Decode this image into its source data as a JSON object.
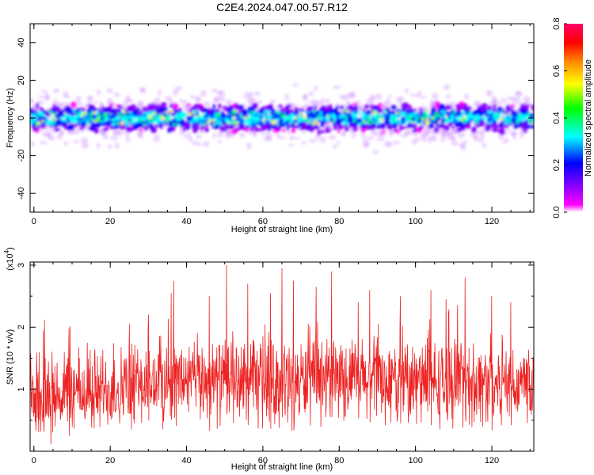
{
  "title": "C2E4.2024.047.00.57.R12",
  "chart_data": [
    {
      "type": "heatmap",
      "xlabel": "Height of straight line (km)",
      "ylabel": "Frequency (Hz)",
      "xlim": [
        -1,
        131
      ],
      "ylim": [
        -50,
        50
      ],
      "xticks": [
        0,
        20,
        40,
        60,
        80,
        100,
        120
      ],
      "yticks": [
        -40,
        -20,
        0,
        20,
        40
      ],
      "band_center": 0,
      "band_halfwidth_core": 6,
      "band_halfwidth_halo": 15,
      "colorbar": {
        "label": "Normalized spectral amplitude",
        "range": [
          0,
          0.8
        ],
        "ticks": [
          0.0,
          0.2,
          0.4,
          0.6,
          0.8
        ],
        "colors": [
          "#ffffff",
          "#ff00ff",
          "#8800ff",
          "#0000ff",
          "#00ffff",
          "#00ff00",
          "#ffff00",
          "#ff8800",
          "#ff0000",
          "#ff0066"
        ]
      }
    },
    {
      "type": "line",
      "xlabel": "Height of straight line (km)",
      "ylabel": "SNR (10 * v/v)",
      "yscale_label": "(x10",
      "yscale_exp": "4",
      "xlim": [
        -1,
        131
      ],
      "ylim": [
        0,
        3.05
      ],
      "xticks": [
        0,
        20,
        40,
        60,
        80,
        100,
        120
      ],
      "yticks": [
        1,
        2,
        3
      ],
      "color": "#ee2222",
      "mean_profile": [
        [
          -1,
          0.85
        ],
        [
          20,
          1.0
        ],
        [
          40,
          1.15
        ],
        [
          65,
          1.1
        ],
        [
          80,
          1.15
        ],
        [
          100,
          1.1
        ],
        [
          131,
          1.1
        ]
      ],
      "amplitude": 0.55,
      "peaks": [
        [
          50.5,
          3.0
        ],
        [
          65,
          2.95
        ],
        [
          78,
          2.9
        ],
        [
          68,
          2.75
        ],
        [
          113,
          2.8
        ],
        [
          56,
          2.7
        ],
        [
          36,
          2.55
        ],
        [
          88,
          2.6
        ],
        [
          104,
          2.6
        ],
        [
          46,
          2.5
        ],
        [
          120,
          2.5
        ],
        [
          74,
          2.65
        ],
        [
          96,
          2.5
        ],
        [
          25,
          2.05
        ],
        [
          30,
          2.2
        ],
        [
          62,
          2.55
        ],
        [
          85,
          2.4
        ],
        [
          108,
          2.45
        ],
        [
          125,
          2.4
        ],
        [
          14,
          1.75
        ],
        [
          8,
          1.6
        ],
        [
          3,
          1.5
        ]
      ]
    }
  ]
}
